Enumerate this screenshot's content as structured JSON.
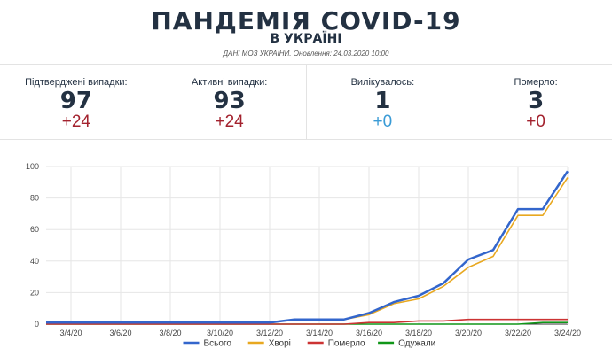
{
  "header": {
    "title": "ПАНДЕМІЯ COVID-19",
    "subtitle": "В УКРАЇНІ",
    "source": "ДАНІ МОЗ УКРАЇНИ. Оновлення: 24.03.2020 10:00"
  },
  "stats": [
    {
      "label": "Підтверджені випадки:",
      "value": "97",
      "delta": "+24",
      "delta_color": "#a3222e"
    },
    {
      "label": "Активні випадки:",
      "value": "93",
      "delta": "+24",
      "delta_color": "#a3222e"
    },
    {
      "label": "Вилікувалось:",
      "value": "1",
      "delta": "+0",
      "delta_color": "#3a9bd6"
    },
    {
      "label": "Померло:",
      "value": "3",
      "delta": "+0",
      "delta_color": "#a3222e"
    }
  ],
  "chart_data": {
    "type": "line",
    "x": [
      "3/3/20",
      "3/4/20",
      "3/5/20",
      "3/6/20",
      "3/7/20",
      "3/8/20",
      "3/9/20",
      "3/10/20",
      "3/11/20",
      "3/12/20",
      "3/13/20",
      "3/14/20",
      "3/15/20",
      "3/16/20",
      "3/17/20",
      "3/18/20",
      "3/19/20",
      "3/20/20",
      "3/21/20",
      "3/22/20",
      "3/23/20",
      "3/24/20"
    ],
    "x_tick_labels": [
      "3/4/20",
      "3/6/20",
      "3/8/20",
      "3/10/20",
      "3/12/20",
      "3/14/20",
      "3/16/20",
      "3/18/20",
      "3/20/20",
      "3/22/20",
      "3/24/20"
    ],
    "y_ticks": [
      0,
      20,
      40,
      60,
      80,
      100
    ],
    "ylim": [
      0,
      100
    ],
    "grid": true,
    "legend_position": "bottom",
    "series": [
      {
        "name": "Всього",
        "color": "#3366cc",
        "values": [
          1,
          1,
          1,
          1,
          1,
          1,
          1,
          1,
          1,
          1,
          3,
          3,
          3,
          7,
          14,
          18,
          26,
          41,
          47,
          73,
          73,
          97
        ]
      },
      {
        "name": "Хворі",
        "color": "#e8a820",
        "values": [
          1,
          1,
          1,
          1,
          1,
          1,
          1,
          1,
          1,
          1,
          3,
          3,
          3,
          6,
          13,
          16,
          24,
          36,
          43,
          69,
          69,
          93
        ]
      },
      {
        "name": "Померло",
        "color": "#cc3333",
        "values": [
          0,
          0,
          0,
          0,
          0,
          0,
          0,
          0,
          0,
          0,
          0,
          0,
          0,
          1,
          1,
          2,
          2,
          3,
          3,
          3,
          3,
          3
        ]
      },
      {
        "name": "Одужали",
        "color": "#109618",
        "values": [
          0,
          0,
          0,
          0,
          0,
          0,
          0,
          0,
          0,
          0,
          0,
          0,
          0,
          0,
          0,
          0,
          0,
          0,
          0,
          0,
          1,
          1
        ]
      }
    ]
  }
}
